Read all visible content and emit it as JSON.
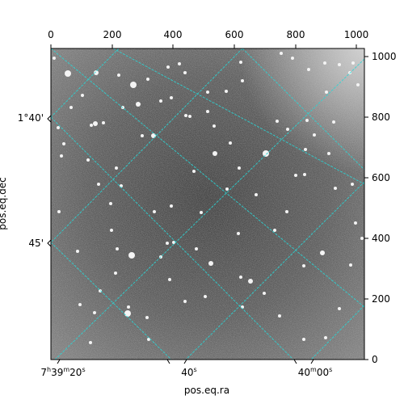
{
  "plot": {
    "x_label": "pos.eq.ra",
    "y_label": "pos.eq.dec",
    "top_ticks": [
      "0",
      "200",
      "400",
      "600",
      "800",
      "1000"
    ],
    "right_ticks": [
      "0",
      "200",
      "400",
      "600",
      "800",
      "1000"
    ],
    "bottom_ticks": {
      "t0_hms": "7",
      "t0_h": "h",
      "t0_mm": "39",
      "t0_m": "m",
      "t0_ss": "20",
      "t0_s": "s",
      "t1_ss": "40",
      "t1_s": "s",
      "t2_mm": "40",
      "t2_m": "m",
      "t2_ss": "00",
      "t2_s": "s"
    },
    "left_ticks": [
      "1°40'",
      "45'"
    ]
  },
  "colors": {
    "grid": "#2ad6d6",
    "image_bg": "#5a5a5a"
  }
}
